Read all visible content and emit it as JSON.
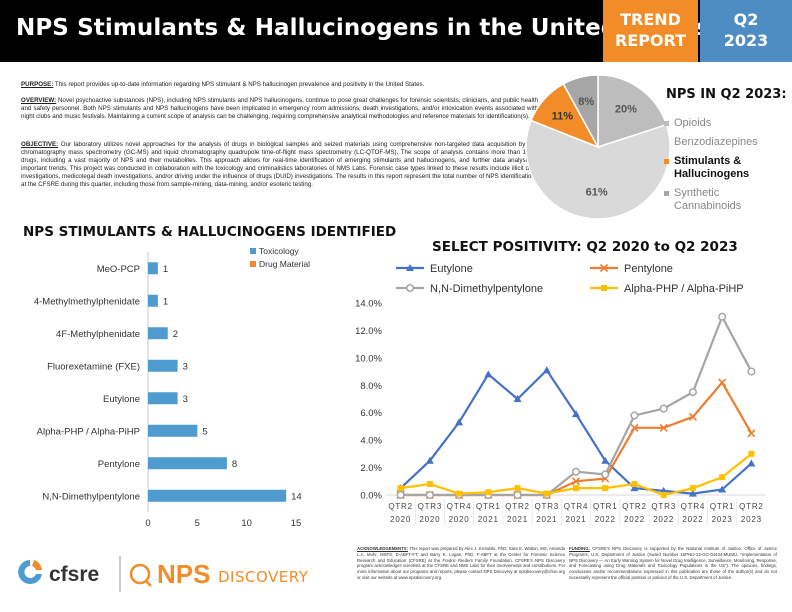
{
  "header": {
    "title": "NPS Stimulants & Hallucinogens in the United States",
    "trend_line1": "TREND",
    "trend_line2": "REPORT",
    "quarter_line1": "Q2",
    "quarter_line2": "2023"
  },
  "intro": {
    "purpose_label": "Purpose:",
    "purpose_text": " This report provides up-to-date information regarding NPS stimulant & NPS hallucinogen prevalence and positivity in the United States.",
    "overview_label": "Overview:",
    "overview_text": " Novel psychoactive substances (NPS), including NPS stimulants and NPS hallucinogens, continue to pose great challenges for forensic scientists, clinicians, and public health and safety personnel. Both NPS stimulants and NPS hallucinogens have been implicated in emergency room admissions, death investigations, and/or intoxication events associated with night clubs and music festivals. Maintaining a current scope of analysis can be challenging, requiring comprehensive analytical methodologies and reference materials for identification(s).",
    "objective_label": "Objective:",
    "objective_text": " Our laboratory utilizes novel approaches for the analysis of drugs in biological samples and seized materials using comprehensive non-targeted data acquisition by gas chromatography mass spectrometry (GC-MS) and liquid chromatography quadrupole time-of-flight mass spectrometry (LC-QTOF-MS). The scope of analysis contains more than 1,000 drugs, including a vast majority of NPS and their metabolites. This approach allows for real-time identification of emerging stimulants and hallucinogens, and further data analysis of important trends. This project was conducted in collaboration with the toxicology and criminalistics laboratories of NMS Labs. Forensic case types linked to these results include illicit drug investigations, medicolegal death investigations, and/or driving under the influence of drugs (DUID) investigations. The results in this report represent the total number of NPS identifications at the CFSRE during this quarter, including those from sample-mining, data-mining, and/or esoteric testing."
  },
  "pie": {
    "heading": "NPS IN Q2 2023:",
    "legend": [
      "Opioids",
      "Benzodiazepines",
      "Stimulants &",
      "Hallucinogens",
      "Synthetic",
      "Cannabinoids"
    ]
  },
  "bar_section": {
    "title": "NPS STIMULANTS & HALLUCINOGENS IDENTIFIED"
  },
  "line_section": {
    "title": "SELECT POSITIVITY: Q2 2020 to Q2 2023"
  },
  "chart_data": [
    {
      "type": "pie",
      "labels": [
        "Opioids",
        "Benzodiazepines",
        "Stimulants & Hallucinogens",
        "Synthetic Cannabinoids"
      ],
      "values": [
        20,
        61,
        11,
        8
      ],
      "value_labels": [
        "20%",
        "61%",
        "11%",
        "8%"
      ],
      "colors": [
        "#bdbdbd",
        "#d9d9d9",
        "#f28c28",
        "#a6a6a6"
      ],
      "highlighted": "Stimulants & Hallucinogens"
    },
    {
      "type": "bar",
      "orientation": "horizontal",
      "categories": [
        "MeO-PCP",
        "4-Methylmethylphenidate",
        "4F-Methylphenidate",
        "Fluorexetamine (FXE)",
        "Eutylone",
        "Alpha-PHP / Alpha-PiHP",
        "Pentylone",
        "N,N-Dimethylpentylone"
      ],
      "series": [
        {
          "name": "Toxicology",
          "color": "#4e9ccf",
          "values": [
            1,
            1,
            2,
            3,
            3,
            5,
            8,
            14
          ]
        },
        {
          "name": "Drug Material",
          "color": "#f28c28",
          "values": [
            0,
            0,
            0,
            0,
            0,
            0,
            0,
            0
          ]
        }
      ],
      "value_labels": [
        "1",
        "1",
        "2",
        "3",
        "3",
        "5",
        "8",
        "14"
      ],
      "xlim": [
        0,
        15
      ],
      "xticks": [
        "0",
        "5",
        "10",
        "15"
      ],
      "legend": "top-right"
    },
    {
      "type": "line",
      "x": [
        "QTR2 2020",
        "QTR3 2020",
        "QTR4 2020",
        "QTR1 2021",
        "QTR2 2021",
        "QTR3 2021",
        "QTR4 2021",
        "QTR1 2022",
        "QTR2 2022",
        "QTR3 2022",
        "QTR4 2022",
        "QTR1 2023",
        "QTR2 2023"
      ],
      "x_tick_top": [
        "QTR2",
        "QTR3",
        "QTR4",
        "QTR1",
        "QTR2",
        "QTR3",
        "QTR4",
        "QTR1",
        "QTR2",
        "QTR3",
        "QTR4",
        "QTR1",
        "QTR2"
      ],
      "x_tick_bottom": [
        "2020",
        "2020",
        "2020",
        "2021",
        "2021",
        "2021",
        "2021",
        "2022",
        "2022",
        "2022",
        "2022",
        "2023",
        "2023"
      ],
      "series": [
        {
          "name": "Eutylone",
          "color": "#4472c4",
          "marker": "triangle",
          "values": [
            0.5,
            2.5,
            5.3,
            8.8,
            7.0,
            9.1,
            5.9,
            2.5,
            0.5,
            0.3,
            0.1,
            0.4,
            2.3
          ]
        },
        {
          "name": "Pentylone",
          "color": "#ed7d31",
          "marker": "x",
          "values": [
            0.0,
            0.0,
            0.0,
            0.0,
            0.0,
            0.0,
            1.0,
            1.2,
            4.9,
            4.9,
            5.7,
            8.2,
            4.5
          ]
        },
        {
          "name": "N,N-Dimethylpentylone",
          "color": "#a5a5a5",
          "marker": "circle",
          "values": [
            0.0,
            0.0,
            0.0,
            0.0,
            0.0,
            0.0,
            1.7,
            1.5,
            5.8,
            6.3,
            7.5,
            13.0,
            9.0
          ]
        },
        {
          "name": "Alpha-PHP / Alpha-PiHP",
          "color": "#ffc000",
          "marker": "square",
          "values": [
            0.5,
            0.8,
            0.1,
            0.2,
            0.5,
            0.1,
            0.5,
            0.5,
            0.8,
            0.0,
            0.5,
            1.3,
            3.0
          ]
        }
      ],
      "ylim": [
        0,
        14
      ],
      "yticks": [
        "0.0%",
        "2.0%",
        "4.0%",
        "6.0%",
        "8.0%",
        "10.0%",
        "12.0%",
        "14.0%"
      ],
      "grid": false,
      "legend": "top"
    }
  ],
  "footer": {
    "logo1": "cfsre",
    "logo2_a": "NPS",
    "logo2_b": "DISCOVERY",
    "ack_label": "ACKNOWLEDGEMENTS:",
    "ack_text": " This report was prepared by Alex J. Krotulski, PhD; Sara E. Walton, MS; Amanda L.A. Mohr, MSFS, D-ABFT-FT; and Barry K. Logan, PhD, F-ABFT at the Center for Forensic Science Research and Education (CFSRE) at the Fredric Rieders Family Foundation. CFSRE's NPS Discovery program acknowledges scientists at the CFSRE and NMS Labs for their involvements and contributions. For more information about our programs and reports, please contact NPS Discovery at npsdiscovery@cfsre.org or visit our website at www.npsdiscovery.org.",
    "fund_label": "FUNDING:",
    "fund_text": " CFSRE's NPS Discovery is supported by the National Institute of Justice, Office of Justice Programs, U.S. Department of Justice (Award Number 15PNIJ-22-GG-04434-MUMU, \"Implementation of NPS Discovery — An Early Warning System for Novel Drug Intelligence, Surveillance, Monitoring, Response, and Forecasting using Drug Materials and Toxicology Populations in the US\"). The opinions, findings, conclusions and/or recommendations expressed in this publication are those of the author(s) and do not necessarily represent the official position or policies of the U.S. Department of Justice."
  }
}
